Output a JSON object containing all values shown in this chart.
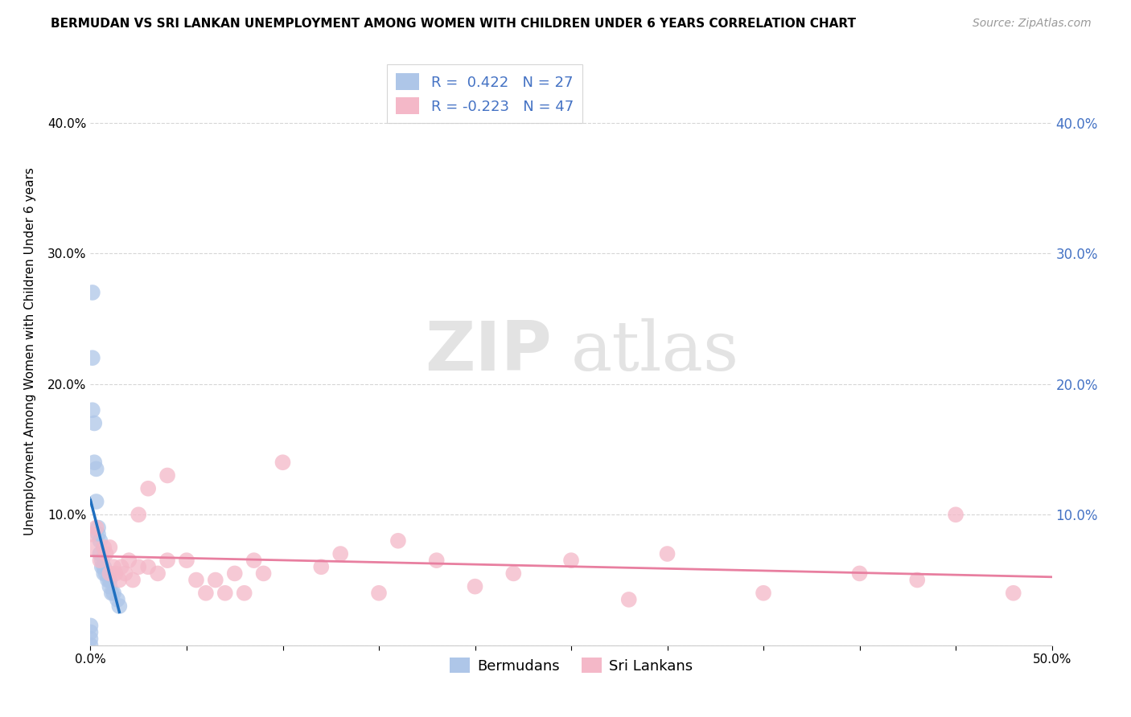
{
  "title": "BERMUDAN VS SRI LANKAN UNEMPLOYMENT AMONG WOMEN WITH CHILDREN UNDER 6 YEARS CORRELATION CHART",
  "source": "Source: ZipAtlas.com",
  "ylabel": "Unemployment Among Women with Children Under 6 years",
  "label_bermudans": "Bermudans",
  "label_srilankans": "Sri Lankans",
  "r_bermudans": 0.422,
  "n_bermudans": 27,
  "r_srilankans": -0.223,
  "n_srilankans": 47,
  "xlim": [
    0.0,
    0.5
  ],
  "ylim": [
    0.0,
    0.45
  ],
  "xtick_vals": [
    0.0,
    0.05,
    0.1,
    0.15,
    0.2,
    0.25,
    0.3,
    0.35,
    0.4,
    0.45,
    0.5
  ],
  "ytick_vals": [
    0.0,
    0.1,
    0.2,
    0.3,
    0.4
  ],
  "color_bermudans": "#aec6e8",
  "color_srilankans": "#f4b8c8",
  "line_color_bermudans": "#1f6fbf",
  "line_color_srilankans": "#e87fa0",
  "legend_color": "#4472c4",
  "right_axis_color": "#4472c4",
  "bermudans_x": [
    0.0,
    0.0,
    0.0,
    0.0,
    0.001,
    0.001,
    0.001,
    0.002,
    0.002,
    0.003,
    0.003,
    0.004,
    0.004,
    0.005,
    0.005,
    0.006,
    0.006,
    0.007,
    0.007,
    0.008,
    0.009,
    0.01,
    0.01,
    0.011,
    0.012,
    0.014,
    0.015
  ],
  "bermudans_y": [
    0.0,
    0.005,
    0.01,
    0.015,
    0.27,
    0.22,
    0.18,
    0.17,
    0.14,
    0.135,
    0.11,
    0.09,
    0.085,
    0.08,
    0.07,
    0.065,
    0.06,
    0.06,
    0.055,
    0.055,
    0.05,
    0.05,
    0.045,
    0.04,
    0.04,
    0.035,
    0.03
  ],
  "srilankans_x": [
    0.0,
    0.001,
    0.003,
    0.005,
    0.007,
    0.008,
    0.01,
    0.01,
    0.012,
    0.013,
    0.015,
    0.016,
    0.018,
    0.02,
    0.022,
    0.025,
    0.025,
    0.03,
    0.03,
    0.035,
    0.04,
    0.04,
    0.05,
    0.055,
    0.06,
    0.065,
    0.07,
    0.075,
    0.08,
    0.085,
    0.09,
    0.1,
    0.12,
    0.13,
    0.15,
    0.16,
    0.18,
    0.2,
    0.22,
    0.25,
    0.28,
    0.3,
    0.35,
    0.4,
    0.43,
    0.45,
    0.48
  ],
  "srilankans_y": [
    0.085,
    0.075,
    0.09,
    0.065,
    0.075,
    0.07,
    0.075,
    0.055,
    0.06,
    0.055,
    0.05,
    0.06,
    0.055,
    0.065,
    0.05,
    0.06,
    0.1,
    0.06,
    0.12,
    0.055,
    0.065,
    0.13,
    0.065,
    0.05,
    0.04,
    0.05,
    0.04,
    0.055,
    0.04,
    0.065,
    0.055,
    0.14,
    0.06,
    0.07,
    0.04,
    0.08,
    0.065,
    0.045,
    0.055,
    0.065,
    0.035,
    0.07,
    0.04,
    0.055,
    0.05,
    0.1,
    0.04
  ]
}
